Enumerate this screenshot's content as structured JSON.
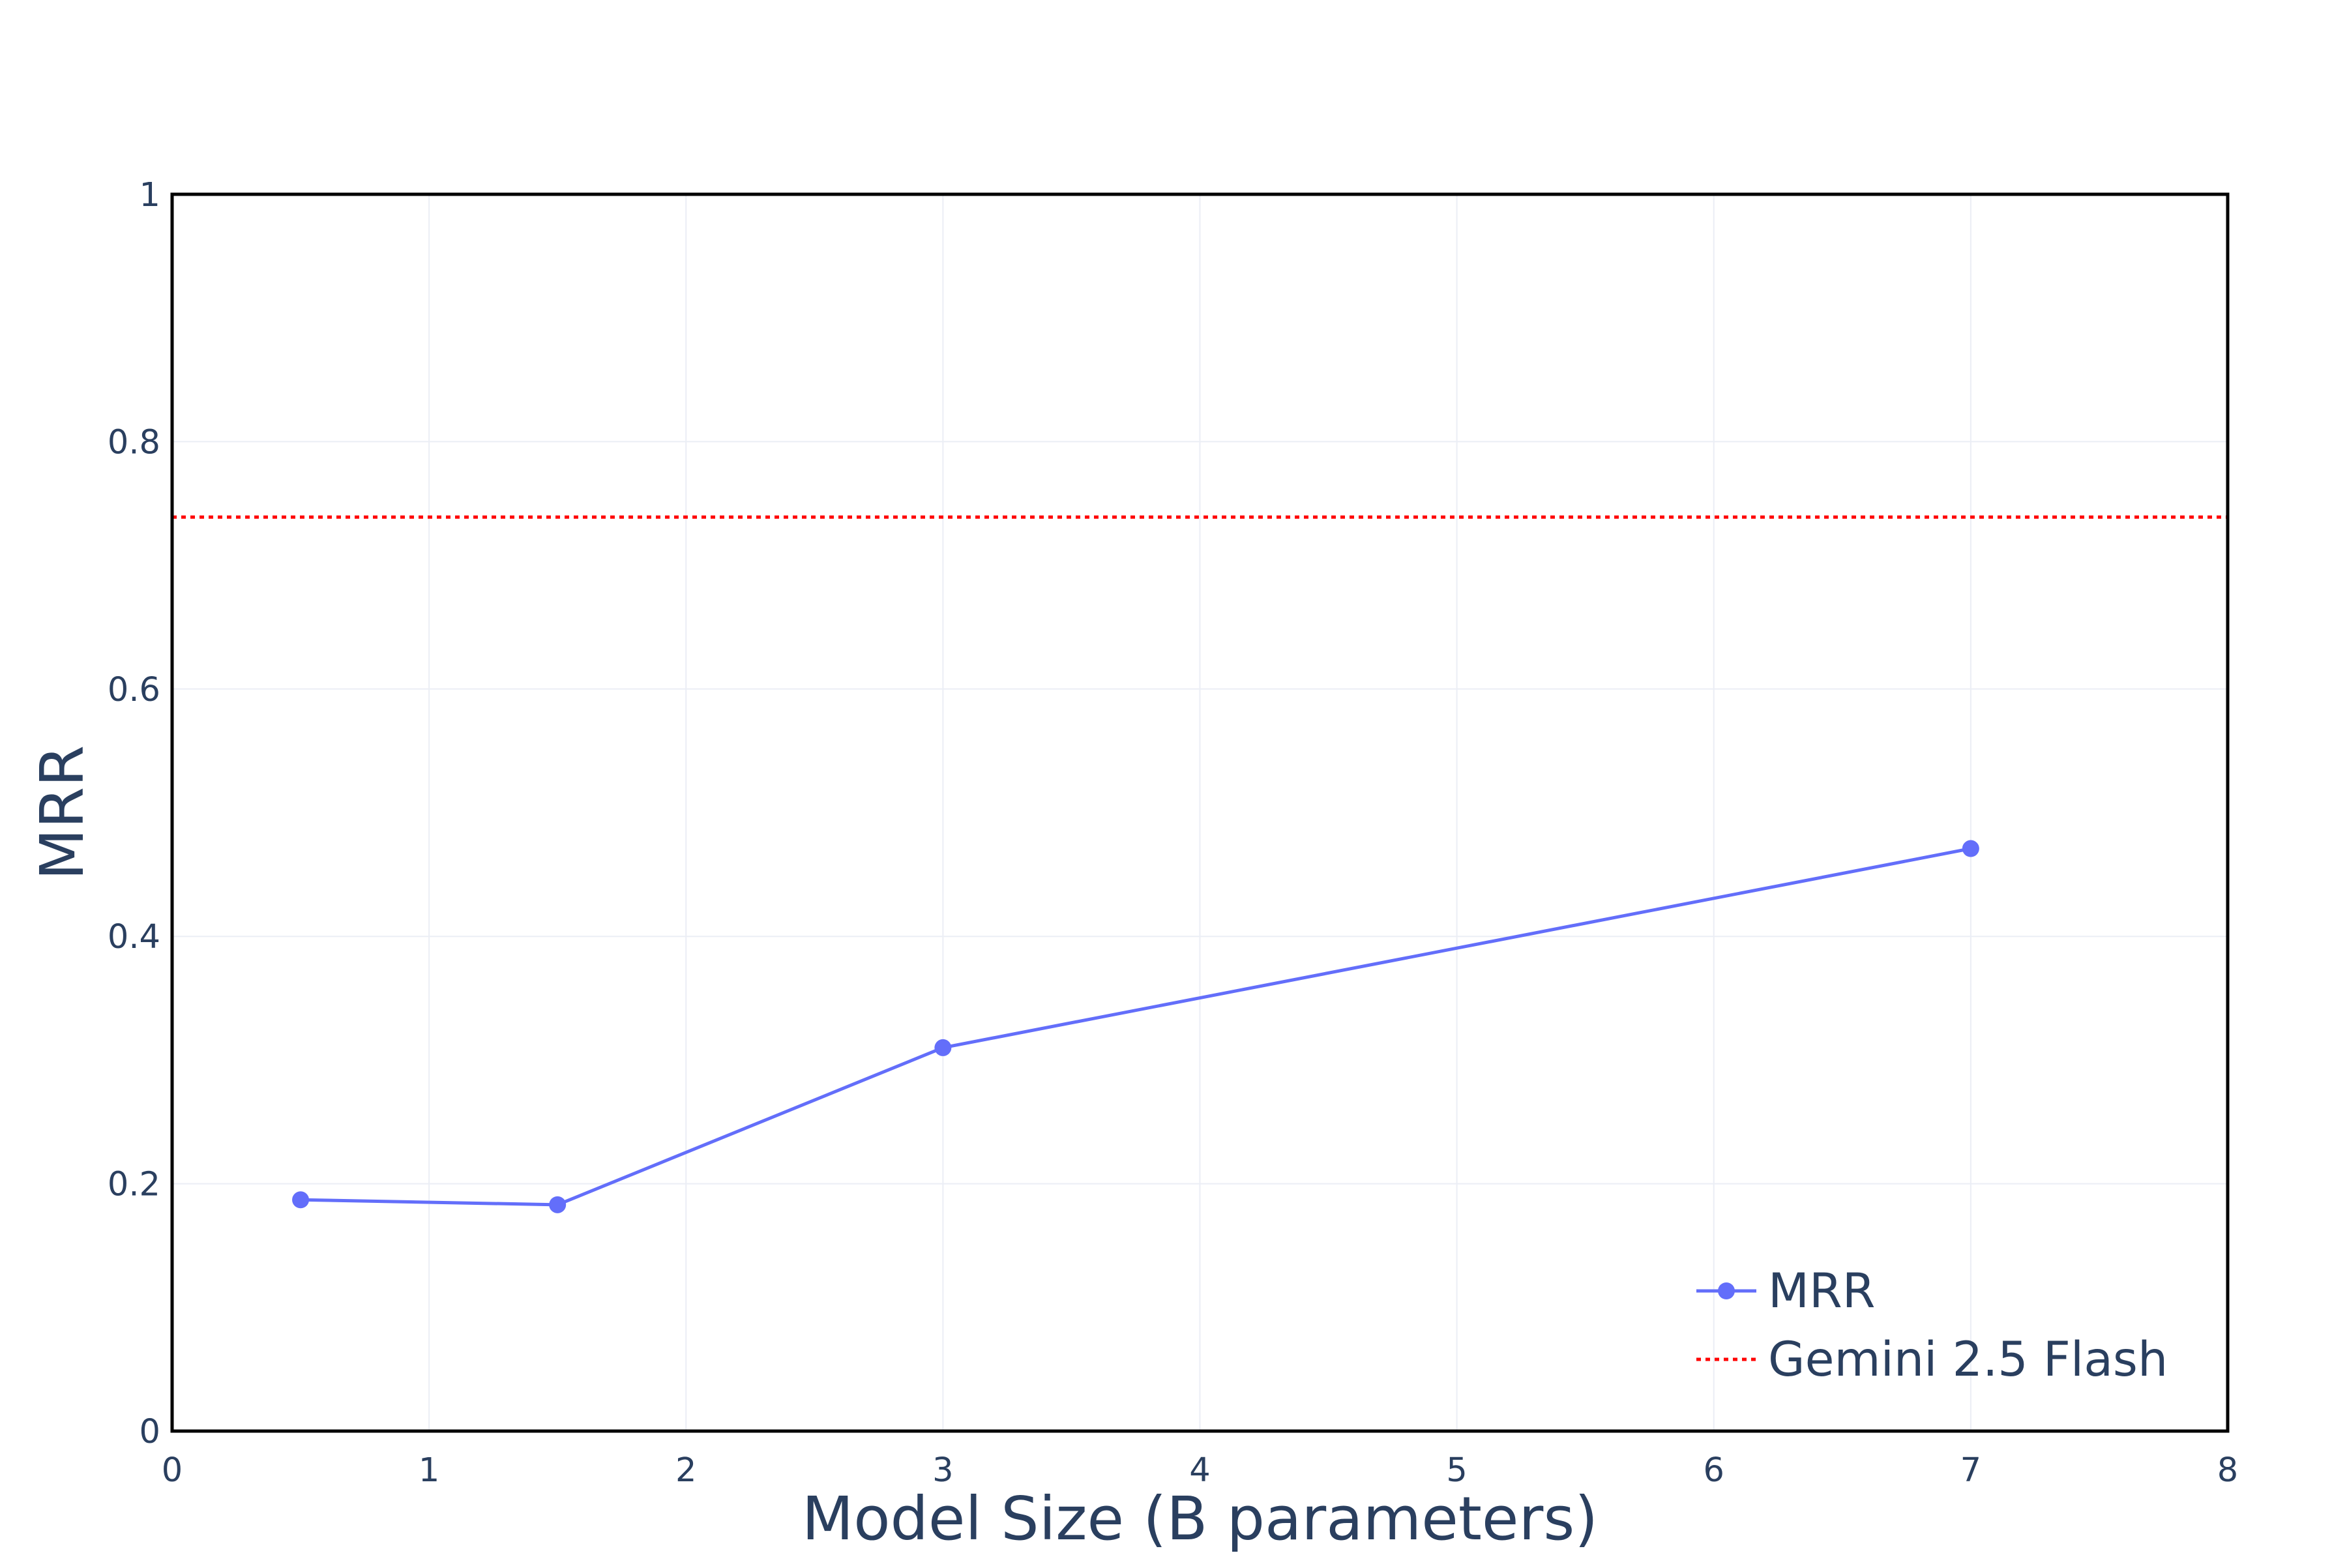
{
  "chart_data": {
    "type": "line",
    "title": "",
    "xlabel": "Model Size (B parameters)",
    "ylabel": "MRR",
    "xlim": [
      0,
      8
    ],
    "ylim": [
      0,
      1
    ],
    "x_ticks": [
      "0",
      "1",
      "2",
      "3",
      "4",
      "5",
      "6",
      "7",
      "8"
    ],
    "y_ticks": [
      "0",
      "0.2",
      "0.4",
      "0.6",
      "0.8",
      "1"
    ],
    "grid": true,
    "legend_position": "bottom-right",
    "series": [
      {
        "name": "MRR",
        "style": "line+markers",
        "color": "#636efa",
        "x": [
          0.5,
          1.5,
          3,
          7
        ],
        "y": [
          0.187,
          0.183,
          0.31,
          0.471
        ]
      }
    ],
    "reference_lines": [
      {
        "name": "Gemini 2.5 Flash",
        "orientation": "horizontal",
        "style": "dotted",
        "color": "#ff0000",
        "y": 0.739
      }
    ],
    "colors": {
      "grid": "#ebeef5",
      "frame": "#000000",
      "text": "#2a3f5f"
    }
  }
}
